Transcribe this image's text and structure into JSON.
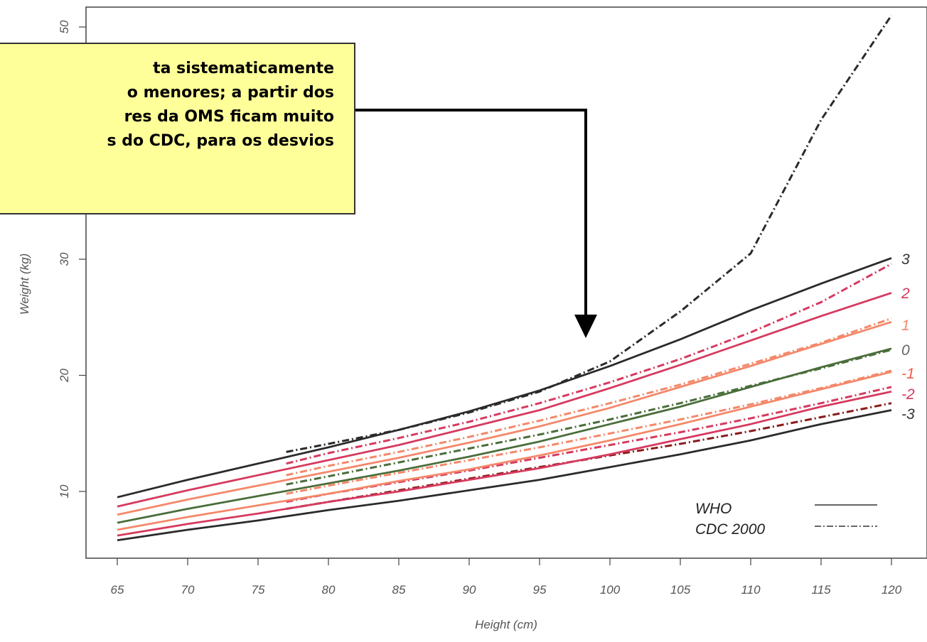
{
  "chart_data": {
    "type": "line",
    "xlabel": "Height (cm)",
    "ylabel": "Weight (kg)",
    "xlim": [
      64,
      121
    ],
    "ylim": [
      4,
      51
    ],
    "x_ticks": [
      65,
      70,
      75,
      80,
      85,
      90,
      95,
      100,
      105,
      110,
      115,
      120
    ],
    "y_ticks": [
      10,
      20,
      30,
      50
    ],
    "grid": false,
    "legend": {
      "placement": "bottom-right",
      "entries": [
        {
          "label": "WHO",
          "style": "solid"
        },
        {
          "label": "CDC 2000",
          "style": "dash-dot"
        }
      ]
    },
    "z_labels": [
      {
        "label": "3",
        "color": "#333333"
      },
      {
        "label": "2",
        "color": "#d4385a"
      },
      {
        "label": "1",
        "color": "#f08a6a"
      },
      {
        "label": "0",
        "color": "#666666"
      },
      {
        "label": "-1",
        "color": "#f05a4a"
      },
      {
        "label": "-2",
        "color": "#d4385a"
      },
      {
        "label": "-3",
        "color": "#333333"
      }
    ],
    "x": [
      65,
      70,
      75,
      80,
      85,
      90,
      95,
      100,
      105,
      110,
      115,
      120
    ],
    "who_series": [
      {
        "z": "3",
        "color": "#2b2b2b",
        "values": [
          9.5,
          11.0,
          12.4,
          13.8,
          15.3,
          16.9,
          18.7,
          20.8,
          23.1,
          25.6,
          27.9,
          30.1
        ]
      },
      {
        "z": "2",
        "color": "#d63a5f",
        "values": [
          8.7,
          10.1,
          11.4,
          12.7,
          14.0,
          15.5,
          17.0,
          18.9,
          20.9,
          23.0,
          25.1,
          27.1
        ]
      },
      {
        "z": "1",
        "color": "#f4886a",
        "values": [
          8.0,
          9.3,
          10.5,
          11.7,
          12.9,
          14.2,
          15.6,
          17.2,
          19.0,
          20.8,
          22.7,
          24.6
        ]
      },
      {
        "z": "0",
        "color": "#4a6e3a",
        "values": [
          7.3,
          8.5,
          9.6,
          10.7,
          11.8,
          13.0,
          14.3,
          15.8,
          17.3,
          19.0,
          20.7,
          22.3
        ]
      },
      {
        "z": "-1",
        "color": "#f4886a",
        "values": [
          6.7,
          7.8,
          8.8,
          9.8,
          10.9,
          11.9,
          13.1,
          14.4,
          15.8,
          17.3,
          18.8,
          20.3
        ]
      },
      {
        "z": "-2",
        "color": "#d63a5f",
        "values": [
          6.2,
          7.2,
          8.1,
          9.1,
          10.0,
          11.0,
          12.0,
          13.2,
          14.5,
          15.8,
          17.3,
          18.6
        ]
      },
      {
        "z": "-3",
        "color": "#2b2b2b",
        "values": [
          5.8,
          6.7,
          7.5,
          8.4,
          9.2,
          10.1,
          11.0,
          12.1,
          13.2,
          14.4,
          15.8,
          17.0
        ]
      }
    ],
    "cdc_x": [
      77,
      80,
      85,
      90,
      95,
      100,
      105,
      110,
      115,
      120
    ],
    "cdc_series": [
      {
        "z": "3",
        "color": "#2b2b2b",
        "values": [
          13.4,
          14.1,
          15.3,
          16.8,
          18.6,
          21.2,
          25.5,
          30.5,
          42.0,
          51.0
        ]
      },
      {
        "z": "2",
        "color": "#d63a5f",
        "values": [
          12.4,
          13.3,
          14.6,
          16.0,
          17.6,
          19.4,
          21.4,
          23.7,
          26.3,
          29.6
        ]
      },
      {
        "z": "1",
        "color": "#f4886a",
        "values": [
          11.4,
          12.2,
          13.4,
          14.7,
          16.1,
          17.6,
          19.2,
          21.0,
          22.8,
          24.9
        ]
      },
      {
        "z": "0",
        "color": "#4a6e3a",
        "values": [
          10.6,
          11.3,
          12.5,
          13.7,
          14.9,
          16.2,
          17.6,
          19.1,
          20.6,
          22.2
        ]
      },
      {
        "z": "-1",
        "color": "#f4886a",
        "values": [
          9.8,
          10.5,
          11.6,
          12.7,
          13.8,
          15.0,
          16.2,
          17.5,
          18.9,
          20.4
        ]
      },
      {
        "z": "-2",
        "color": "#d63a5f",
        "values": [
          9.1,
          9.8,
          10.8,
          11.8,
          12.9,
          14.0,
          15.1,
          16.3,
          17.6,
          19.0
        ]
      },
      {
        "z": "-3",
        "color": "#8b1a1a",
        "values": [
          8.5,
          9.1,
          10.1,
          11.1,
          12.1,
          13.1,
          14.1,
          15.2,
          16.4,
          17.6
        ]
      }
    ]
  },
  "annotation": {
    "lines": [
      "ta sistematicamente",
      "o menores; a partir dos",
      "res da OMS ficam muito",
      "s do CDC, para os desvios"
    ],
    "background": "#ffff99"
  }
}
